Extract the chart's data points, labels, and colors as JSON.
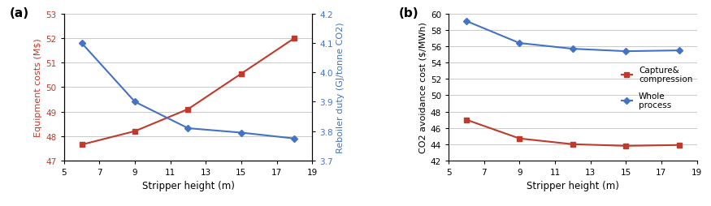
{
  "x": [
    6,
    9,
    12,
    15,
    18
  ],
  "panel_a": {
    "red_y": [
      47.65,
      48.2,
      49.1,
      50.55,
      52.0
    ],
    "blue_y": [
      4.1,
      3.9,
      3.81,
      3.795,
      3.775
    ],
    "xlabel": "Stripper height (m)",
    "ylabel_left": "Equipment costs (M$)",
    "ylabel_right": "Reboiler duty (GJ/tonne CO2)",
    "xlim": [
      5,
      19
    ],
    "ylim_left": [
      47,
      53
    ],
    "ylim_right": [
      3.7,
      4.2
    ],
    "yticks_left": [
      47,
      48,
      49,
      50,
      51,
      52,
      53
    ],
    "yticks_right": [
      3.7,
      3.8,
      3.9,
      4.0,
      4.1,
      4.2
    ],
    "xticks": [
      5,
      7,
      9,
      11,
      13,
      15,
      17,
      19
    ],
    "label": "(a)"
  },
  "panel_b": {
    "red_y": [
      47.0,
      44.7,
      44.0,
      43.8,
      43.9
    ],
    "blue_y": [
      59.1,
      56.4,
      55.7,
      55.4,
      55.5
    ],
    "xlabel": "Stripper height (m)",
    "ylabel": "CO2 avoidance cost ($/MWh)",
    "xlim": [
      5,
      19
    ],
    "ylim": [
      42,
      60
    ],
    "yticks": [
      42,
      44,
      46,
      48,
      50,
      52,
      54,
      56,
      58,
      60
    ],
    "xticks": [
      5,
      7,
      9,
      11,
      13,
      15,
      17,
      19
    ],
    "legend_red": "Capture&\ncompression",
    "legend_blue": "Whole\nprocess",
    "label": "(b)"
  },
  "red_color": "#c0392b",
  "blue_color": "#4472c4",
  "marker_size": 4.5,
  "linewidth": 1.5,
  "grid_color": "#c0c0c0",
  "bg_color": "#ffffff"
}
